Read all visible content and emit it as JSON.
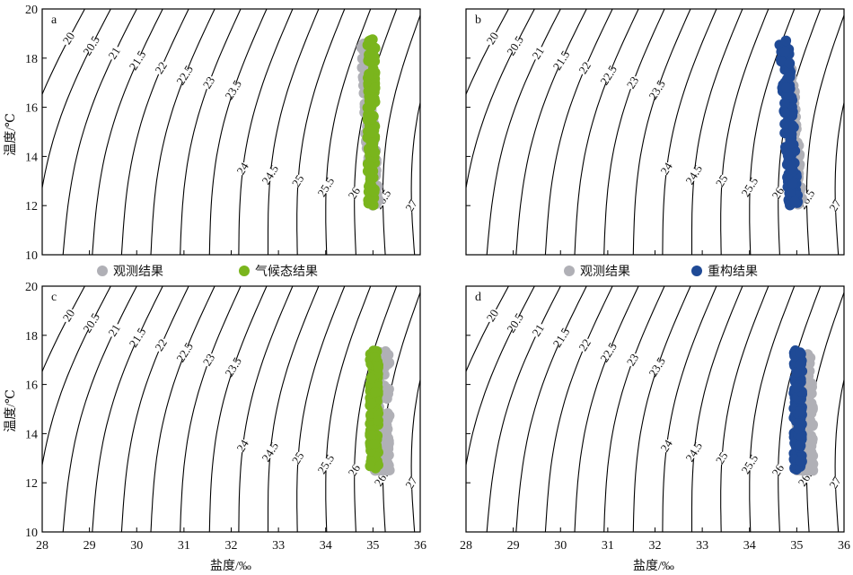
{
  "figure": {
    "y_label": "温度/℃",
    "x_label": "盐度/‰",
    "legend_left": [
      {
        "label": "观测结果",
        "color": "#b0b0b6"
      },
      {
        "label": "气候态结果",
        "color": "#7ab51d"
      }
    ],
    "legend_right": [
      {
        "label": "观测结果",
        "color": "#b0b0b6"
      },
      {
        "label": "重构结果",
        "color": "#1f4a96"
      }
    ]
  },
  "chart_data": [
    {
      "type": "scatter",
      "panel": "a",
      "xlim": [
        28,
        36
      ],
      "ylim": [
        10,
        20
      ],
      "x_ticks": [
        "28",
        "29",
        "30",
        "31",
        "32",
        "33",
        "34",
        "35",
        "36"
      ],
      "y_ticks": [
        "10",
        "12",
        "14",
        "16",
        "18",
        "20"
      ],
      "show_x_ticks": false,
      "contour_labels": [
        "20",
        "20.5",
        "21",
        "21.5",
        "22",
        "22.5",
        "23",
        "23.5",
        "24",
        "24.5",
        "25",
        "25.5",
        "26",
        "26.5",
        "27"
      ],
      "series": [
        {
          "name": "观测结果",
          "color": "#b0b0b6",
          "salinity_range": [
            34.75,
            35.15
          ],
          "temperature_range": [
            12.0,
            18.6
          ],
          "profile": "drift_warm_fresher"
        },
        {
          "name": "气候态结果",
          "color": "#7ab51d",
          "salinity_range": [
            34.85,
            35.08
          ],
          "temperature_range": [
            12.0,
            18.8
          ],
          "profile": "vertical"
        }
      ]
    },
    {
      "type": "scatter",
      "panel": "b",
      "xlim": [
        28,
        36
      ],
      "ylim": [
        10,
        20
      ],
      "x_ticks": [
        "28",
        "29",
        "30",
        "31",
        "32",
        "33",
        "34",
        "35",
        "36"
      ],
      "y_ticks": [
        "10",
        "12",
        "14",
        "16",
        "18",
        "20"
      ],
      "show_x_ticks": false,
      "contour_labels": [
        "20",
        "20.5",
        "21",
        "21.5",
        "22",
        "22.5",
        "23",
        "23.5",
        "24",
        "24.5",
        "25",
        "25.5",
        "26",
        "26.5",
        "27"
      ],
      "series": [
        {
          "name": "观测结果",
          "color": "#b0b0b6",
          "salinity_range": [
            34.75,
            35.15
          ],
          "temperature_range": [
            12.0,
            18.0
          ],
          "profile": "drift_warm_fresher"
        },
        {
          "name": "重构结果",
          "color": "#1f4a96",
          "salinity_range": [
            34.7,
            35.05
          ],
          "temperature_range": [
            12.0,
            18.8
          ],
          "profile": "drift_warm_fresher"
        }
      ]
    },
    {
      "type": "scatter",
      "panel": "c",
      "xlim": [
        28,
        36
      ],
      "ylim": [
        10,
        20
      ],
      "x_ticks": [
        "28",
        "29",
        "30",
        "31",
        "32",
        "33",
        "34",
        "35",
        "36"
      ],
      "y_ticks": [
        "10",
        "12",
        "14",
        "16",
        "18",
        "20"
      ],
      "show_x_ticks": true,
      "contour_labels": [
        "20",
        "20.5",
        "21",
        "21.5",
        "22",
        "22.5",
        "23",
        "23.5",
        "24",
        "24.5",
        "25",
        "25.5",
        "26",
        "26.5",
        "27"
      ],
      "series": [
        {
          "name": "观测结果",
          "color": "#b0b0b6",
          "salinity_range": [
            34.9,
            35.35
          ],
          "temperature_range": [
            12.5,
            17.4
          ],
          "profile": "cluster_low"
        },
        {
          "name": "气候态结果",
          "color": "#7ab51d",
          "salinity_range": [
            34.9,
            35.15
          ],
          "temperature_range": [
            12.5,
            17.4
          ],
          "profile": "vertical"
        }
      ]
    },
    {
      "type": "scatter",
      "panel": "d",
      "xlim": [
        28,
        36
      ],
      "ylim": [
        10,
        20
      ],
      "x_ticks": [
        "28",
        "29",
        "30",
        "31",
        "32",
        "33",
        "34",
        "35",
        "36"
      ],
      "y_ticks": [
        "10",
        "12",
        "14",
        "16",
        "18",
        "20"
      ],
      "show_x_ticks": true,
      "contour_labels": [
        "20",
        "20.5",
        "21",
        "21.5",
        "22",
        "22.5",
        "23",
        "23.5",
        "24",
        "24.5",
        "25",
        "25.5",
        "26",
        "26.5",
        "27"
      ],
      "series": [
        {
          "name": "观测结果",
          "color": "#b0b0b6",
          "salinity_range": [
            34.9,
            35.35
          ],
          "temperature_range": [
            12.5,
            17.4
          ],
          "profile": "cluster_low"
        },
        {
          "name": "重构结果",
          "color": "#1f4a96",
          "salinity_range": [
            34.9,
            35.15
          ],
          "temperature_range": [
            12.5,
            17.4
          ],
          "profile": "vertical"
        }
      ]
    }
  ]
}
